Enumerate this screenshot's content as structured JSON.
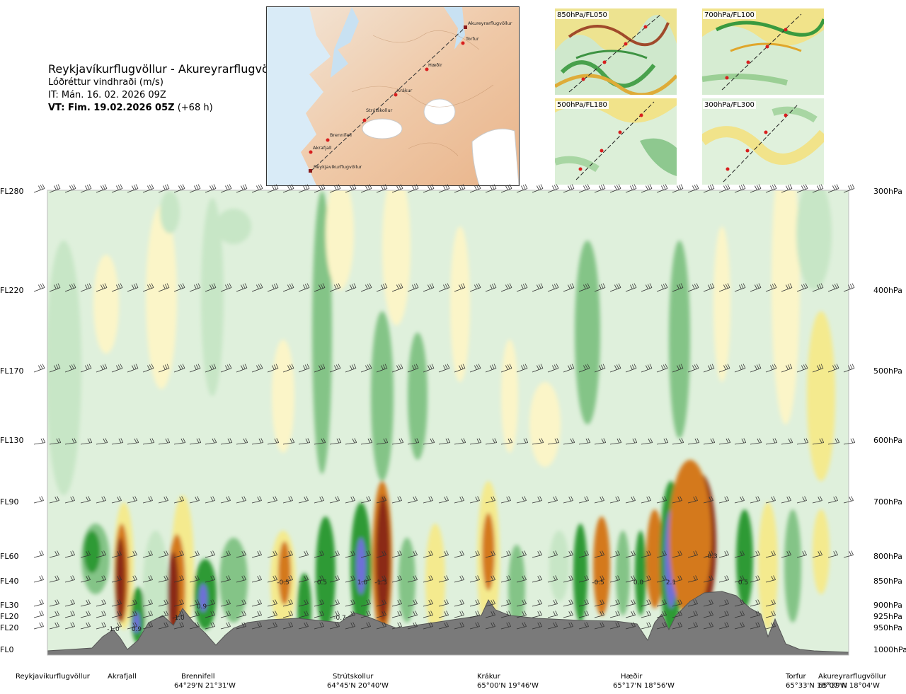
{
  "header": {
    "route": "Reykjavíkurflugvöllur - Akureyrarflugvöllur",
    "variable": "Lóðréttur vindhraði (m/s)",
    "it": "IT: Mán. 16. 02. 2026 09Z",
    "vt_bold": "VT: Fim. 19.02.2026 05Z",
    "vt_lead": "(+68 h)"
  },
  "route_map": {
    "places": [
      "Akureyrarflugvöllur",
      "Torfur",
      "Hæðir",
      "Krákur",
      "Strútskollur",
      "Brennifell",
      "Akrafjall",
      "Reykjavíkurflugvöllur"
    ]
  },
  "level_maps": [
    {
      "label": "850hPa/FL050"
    },
    {
      "label": "700hPa/FL100"
    },
    {
      "label": "500hPa/FL180"
    },
    {
      "label": "300hPa/FL300"
    }
  ],
  "colors": {
    "dark_green": "#2e9a34",
    "mid_green": "#84c487",
    "light_green": "#c7e6c6",
    "pale_green": "#dff0dc",
    "blue": "#6e6fd8",
    "brown": "#8b2a15",
    "orange": "#d4791f",
    "gold": "#e8b52a",
    "yellow": "#f4ea8e",
    "pale_yellow": "#fbf5c8",
    "terrain": "#7a7a7a"
  },
  "chart_data": {
    "type": "heatmap",
    "left_axis": [
      "FL280",
      "FL220",
      "FL170",
      "FL130",
      "FL90",
      "FL60",
      "FL40",
      "FL30",
      "FL20",
      "FL20",
      "FL0"
    ],
    "right_axis": [
      "300hPa",
      "400hPa",
      "500hPa",
      "600hPa",
      "700hPa",
      "800hPa",
      "850hPa",
      "900hPa",
      "925hPa",
      "950hPa",
      "1000hPa"
    ],
    "value_labels": [
      "-1.0",
      "0.9",
      "-1.0",
      "0.9",
      "-0.5",
      "0.5",
      "-0.7",
      "1.0",
      "-1.3",
      "-0.5",
      "0.0",
      "2.1",
      "-0.3",
      "0.5"
    ],
    "waypoints": [
      {
        "name": "Reykjavíkurflugvöllur",
        "coord": ""
      },
      {
        "name": "Akrafjall",
        "coord": ""
      },
      {
        "name": "Brennifell",
        "coord": "64°29'N 21°31'W"
      },
      {
        "name": "Strútskollur",
        "coord": "64°45'N 20°40'W"
      },
      {
        "name": "Krákur",
        "coord": "65°00'N 19°46'W"
      },
      {
        "name": "Hæðir",
        "coord": "65°17'N 18°56'W"
      },
      {
        "name": "Torfur",
        "coord": "65°33'N 18°07'W"
      },
      {
        "name": "Akureyrarflugvöllur",
        "coord": "65°39'N 18°04'W"
      }
    ],
    "wind_barb_levels_hpa": [
      300,
      400,
      500,
      600,
      700,
      800,
      850,
      900,
      925,
      950
    ]
  }
}
